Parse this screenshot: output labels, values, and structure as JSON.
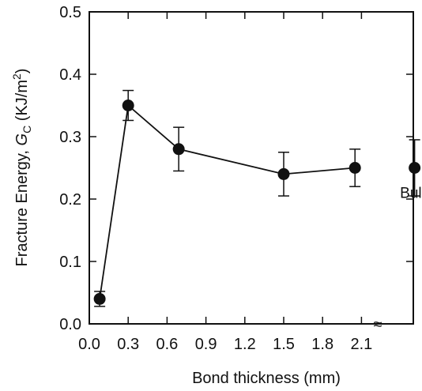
{
  "chart_data": {
    "type": "scatter",
    "xlabel": "Bond thickness (mm)",
    "ylabel_prefix": "Fracture Energy, ",
    "ylabel_symbol": "G",
    "ylabel_subscript": "C",
    "ylabel_units_open": " (KJ/m",
    "ylabel_units_sup": "2",
    "ylabel_units_close": ")",
    "xlim": [
      0,
      2.5
    ],
    "ylim": [
      0,
      0.5
    ],
    "x_ticks": [
      "0.0",
      "0.3",
      "0.6",
      "0.9",
      "1.2",
      "1.5",
      "1.8",
      "2.1"
    ],
    "x_tick_values": [
      0,
      0.3,
      0.6,
      0.9,
      1.2,
      1.5,
      1.8,
      2.1
    ],
    "y_ticks": [
      "0.0",
      "0.1",
      "0.2",
      "0.3",
      "0.4",
      "0.5"
    ],
    "y_tick_values": [
      0,
      0.1,
      0.2,
      0.3,
      0.4,
      0.5
    ],
    "axis_break": "≈",
    "series": [
      {
        "connected": true,
        "points": [
          {
            "x": 0.08,
            "y": 0.04,
            "err": 0.012
          },
          {
            "x": 0.3,
            "y": 0.35,
            "err": 0.024
          },
          {
            "x": 0.69,
            "y": 0.28,
            "err": 0.035
          },
          {
            "x": 1.5,
            "y": 0.24,
            "err": 0.035
          },
          {
            "x": 2.05,
            "y": 0.25,
            "err": 0.03
          }
        ]
      },
      {
        "connected": false,
        "label": "Bulk",
        "points": [
          {
            "x": 2.51,
            "y": 0.25,
            "err": 0.045
          }
        ]
      }
    ]
  }
}
